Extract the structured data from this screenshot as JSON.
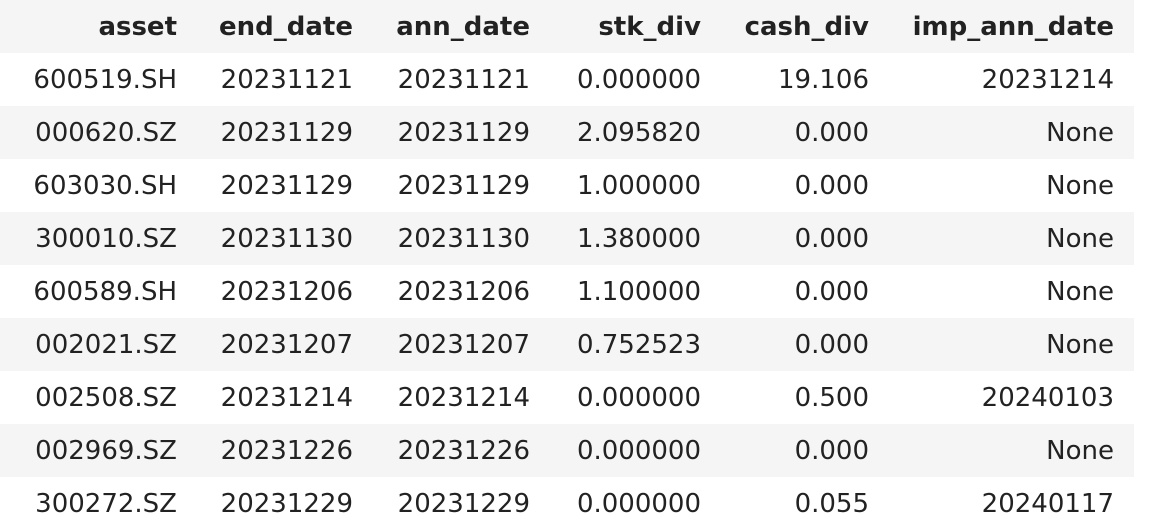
{
  "table": {
    "columns": [
      "asset",
      "end_date",
      "ann_date",
      "stk_div",
      "cash_div",
      "imp_ann_date"
    ],
    "rows": [
      [
        "600519.SH",
        "20231121",
        "20231121",
        "0.000000",
        "19.106",
        "20231214"
      ],
      [
        "000620.SZ",
        "20231129",
        "20231129",
        "2.095820",
        "0.000",
        "None"
      ],
      [
        "603030.SH",
        "20231129",
        "20231129",
        "1.000000",
        "0.000",
        "None"
      ],
      [
        "300010.SZ",
        "20231130",
        "20231130",
        "1.380000",
        "0.000",
        "None"
      ],
      [
        "600589.SH",
        "20231206",
        "20231206",
        "1.100000",
        "0.000",
        "None"
      ],
      [
        "002021.SZ",
        "20231207",
        "20231207",
        "0.752523",
        "0.000",
        "None"
      ],
      [
        "002508.SZ",
        "20231214",
        "20231214",
        "0.000000",
        "0.500",
        "20240103"
      ],
      [
        "002969.SZ",
        "20231226",
        "20231226",
        "0.000000",
        "0.000",
        "None"
      ],
      [
        "300272.SZ",
        "20231229",
        "20231229",
        "0.000000",
        "0.055",
        "20240117"
      ]
    ]
  }
}
